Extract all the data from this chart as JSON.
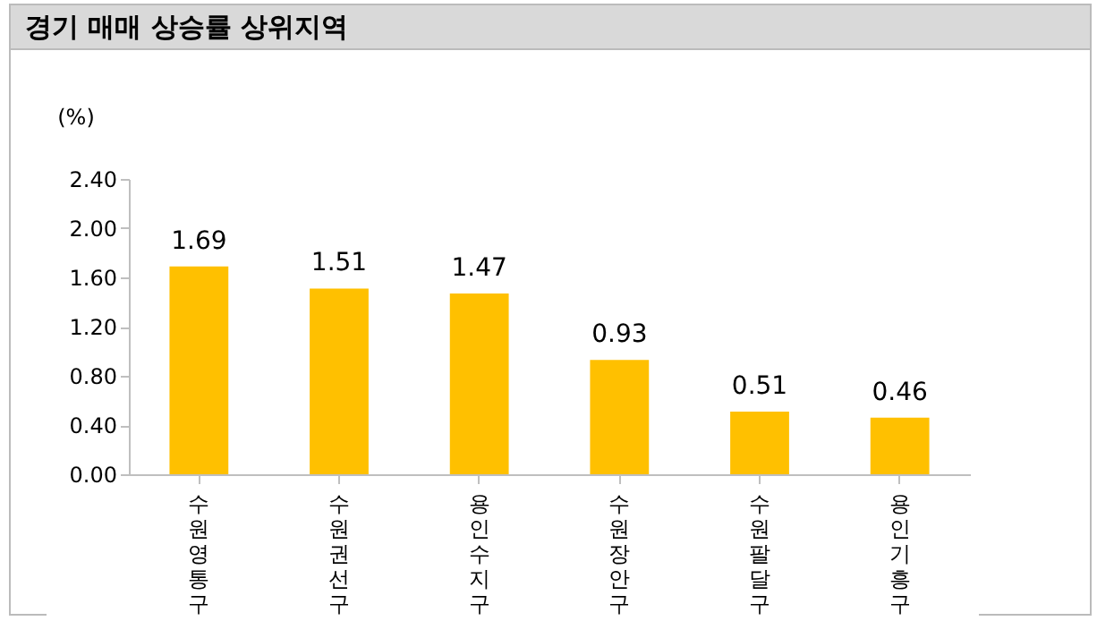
{
  "chart_data": {
    "type": "bar",
    "title": "경기 매매 상승률 상위지역",
    "ylabel": "(%)",
    "categories": [
      "수원영통구",
      "수원권선구",
      "용인수지구",
      "수원장안구",
      "수원팔달구",
      "용인기흥구"
    ],
    "values": [
      1.69,
      1.51,
      1.47,
      0.93,
      0.51,
      0.46
    ],
    "color": "#ffc000",
    "data_labels": true,
    "ylim": [
      0,
      2.4
    ],
    "yticks": [
      {
        "value": 0,
        "label": "0.00"
      },
      {
        "value": 0.4,
        "label": "0.40"
      },
      {
        "value": 0.8,
        "label": "0.80"
      },
      {
        "value": 1.2,
        "label": "1.20"
      },
      {
        "value": 1.6,
        "label": "1.60"
      },
      {
        "value": 2.0,
        "label": "2.00"
      },
      {
        "value": 2.4,
        "label": "2.40"
      }
    ],
    "grid": false
  }
}
